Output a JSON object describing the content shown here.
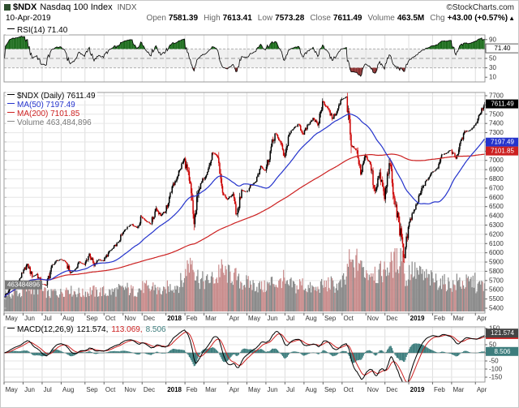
{
  "header": {
    "symbol": "$NDX",
    "name": "Nasdaq 100 Index",
    "exchange": "INDX",
    "date": "10-Apr-2019",
    "watermark": "©StockCharts.com",
    "quote": {
      "open_label": "Open",
      "open": "7581.39",
      "high_label": "High",
      "high": "7613.41",
      "low_label": "Low",
      "low": "7573.28",
      "close_label": "Close",
      "close": "7611.49",
      "volume_label": "Volume",
      "volume": "463.5M",
      "chg_label": "Chg",
      "chg": "+43.00 (+0.57%)",
      "chg_arrow": "▲"
    }
  },
  "rsi_panel": {
    "legend": "RSI(14) 71.40",
    "value_box": "71.40"
  },
  "main_panel": {
    "legend_price": "$NDX (Daily) 7611.49",
    "legend_ma50": "MA(50) 7197.49",
    "legend_ma200": "MA(200) 7101.85",
    "legend_volume": "Volume 463,484,896",
    "price_box": "7611.49",
    "ma50_box": "7197.49",
    "ma200_box": "7101.85",
    "volume_box": "463484896"
  },
  "macd_panel": {
    "legend_name": "MACD(12,26,9)",
    "legend_macd": "121.574,",
    "legend_signal": "113.069,",
    "legend_hist": "8.506",
    "macd_box": "121.574",
    "signal_box": "113.069",
    "hist_box": "8.506"
  },
  "colors": {
    "up": "#000000",
    "down": "#cc0000",
    "ma50": "#2433cc",
    "ma200": "#cc2020",
    "vol_up": "#8a8a8a",
    "vol_down": "#c98c8c",
    "hist": "#3d7d7d",
    "signal": "#cc2020",
    "rsi_fill_high": "#1a6b1a",
    "rsi_fill_low": "#8b2f2f",
    "grid": "#e6e6e6",
    "axis": "#333333"
  },
  "chart_data": {
    "type": "candlestick",
    "title": "$NDX Nasdaq 100 Index (Daily)",
    "x_labels": [
      "May",
      "Jun",
      "Jul",
      "Aug",
      "Sep",
      "Oct",
      "Nov",
      "Dec",
      "2018",
      "Feb",
      "Mar",
      "Apr",
      "May",
      "Jun",
      "Jul",
      "Aug",
      "Sep",
      "Oct",
      "Nov",
      "Dec",
      "2019",
      "Feb",
      "Mar",
      "Apr"
    ],
    "bold_labels": [
      "2018",
      "2019"
    ],
    "month_start_week": [
      0,
      4,
      8,
      12,
      17,
      21,
      25,
      29,
      34,
      38,
      42,
      47,
      51,
      55,
      59,
      63,
      67,
      71,
      76,
      80,
      85,
      90,
      94,
      99
    ],
    "price_ylim": [
      5400,
      7700
    ],
    "price_tick_step": 100,
    "last_close": 7611.49,
    "ma50_last": 7197.49,
    "ma200_last": 7101.85,
    "last_volume_millions": 463,
    "rsi": {
      "period": 14,
      "last": 71.4,
      "ticks": [
        90,
        70,
        50,
        30,
        10
      ],
      "overbought": 70,
      "oversold": 30
    },
    "macd": {
      "params": [
        12,
        26,
        9
      ],
      "last_macd": 121.574,
      "last_signal": 113.069,
      "last_hist": 8.506,
      "ticks": [
        150,
        100,
        50,
        0,
        -50,
        -100,
        -150
      ],
      "ylim": [
        -180,
        160
      ]
    },
    "weekly_closes": [
      5580,
      5650,
      5690,
      5780,
      5880,
      5740,
      5770,
      5660,
      5650,
      5840,
      5910,
      5930,
      5900,
      5780,
      5820,
      5900,
      5870,
      5990,
      5860,
      5930,
      5910,
      6000,
      6050,
      6110,
      6210,
      6280,
      6310,
      6270,
      6390,
      6340,
      6310,
      6480,
      6400,
      6450,
      6650,
      6770,
      6900,
      7020,
      6780,
      6310,
      6680,
      6800,
      6910,
      7080,
      7030,
      6650,
      6580,
      6630,
      6420,
      6680,
      6660,
      6730,
      6770,
      6940,
      6890,
      7100,
      7290,
      7210,
      7040,
      7280,
      7350,
      7390,
      7280,
      7390,
      7460,
      7380,
      7640,
      7570,
      7450,
      7530,
      7660,
      7690,
      7160,
      7110,
      6850,
      7050,
      6960,
      6670,
      6870,
      6580,
      6970,
      6590,
      6330,
      5950,
      6280,
      6430,
      6550,
      6710,
      6790,
      6870,
      6910,
      7060,
      7080,
      7110,
      7020,
      7210,
      7310,
      7330,
      7380,
      7500,
      7611.49
    ],
    "weekly_volumes_millions": [
      320,
      300,
      340,
      310,
      380,
      420,
      360,
      400,
      330,
      300,
      340,
      320,
      360,
      410,
      350,
      330,
      310,
      340,
      360,
      330,
      350,
      320,
      340,
      360,
      380,
      400,
      370,
      350,
      390,
      420,
      380,
      440,
      360,
      340,
      420,
      440,
      460,
      520,
      780,
      920,
      620,
      540,
      520,
      560,
      580,
      720,
      660,
      640,
      600,
      520,
      500,
      480,
      460,
      440,
      420,
      460,
      520,
      480,
      560,
      440,
      460,
      420,
      480,
      420,
      400,
      380,
      440,
      460,
      480,
      440,
      460,
      520,
      840,
      780,
      880,
      720,
      680,
      720,
      640,
      700,
      760,
      820,
      880,
      1020,
      560,
      720,
      680,
      640,
      600,
      560,
      540,
      520,
      500,
      480,
      460,
      520,
      480,
      500,
      520,
      440,
      463
    ]
  }
}
